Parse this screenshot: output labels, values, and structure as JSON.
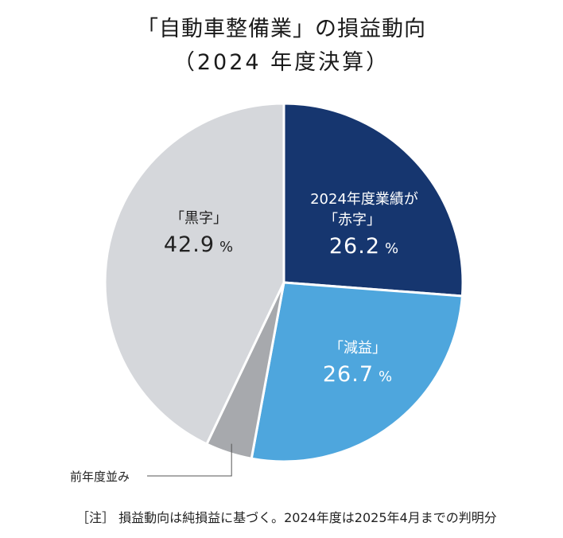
{
  "chart_data": {
    "type": "pie",
    "title": "「自動車整備業」の損益動向",
    "subtitle": "（2024 年度決算）",
    "slices": [
      {
        "label": "2024年度業績が「赤字」",
        "label_line1": "2024年度業績が",
        "label_line2": "「赤字」",
        "value": 26.2,
        "value_text": "26.2",
        "color": "#16366f",
        "text_color": "#ffffff"
      },
      {
        "label": "「減益」",
        "value": 26.7,
        "value_text": "26.7",
        "color": "#4ea6dd",
        "text_color": "#ffffff"
      },
      {
        "label": "前年度並み",
        "value": 4.2,
        "value_text": "",
        "color": "#a7a9ad",
        "text_color": "#222222"
      },
      {
        "label": "「黒字」",
        "value": 42.9,
        "value_text": "42.9",
        "color": "#d5d7db",
        "text_color": "#222222"
      }
    ],
    "unit": "%",
    "note": "［注］ 損益動向は純損益に基づく。2024年度は2025年4月までの判明分"
  }
}
